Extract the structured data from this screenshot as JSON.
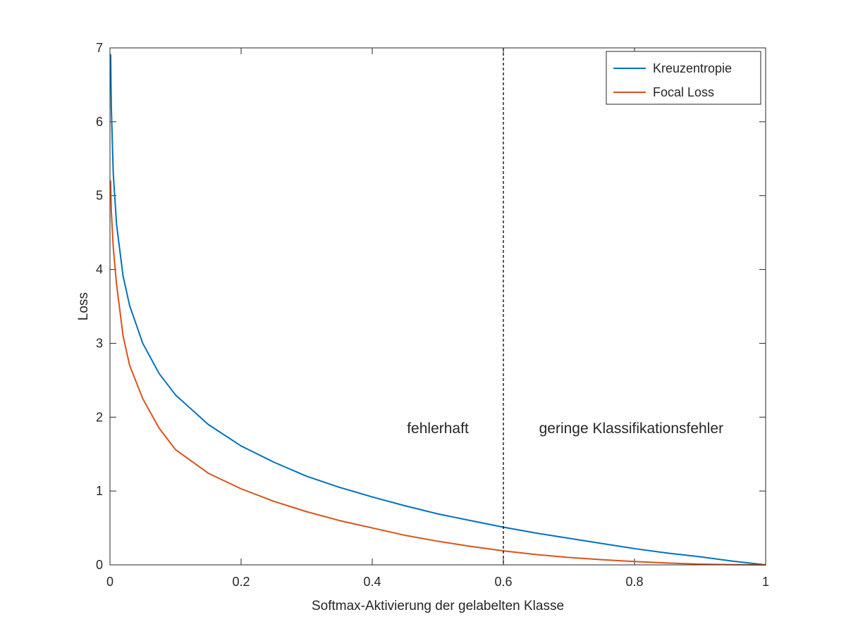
{
  "chart_data": {
    "type": "line",
    "xlabel": "Softmax-Aktivierung der gelabelten Klasse",
    "ylabel": "Loss",
    "xlim": [
      0,
      1
    ],
    "ylim": [
      0,
      7
    ],
    "xticks": [
      0,
      0.2,
      0.4,
      0.6,
      0.8,
      1
    ],
    "xtick_labels": [
      "0",
      "0.2",
      "0.4",
      "0.6",
      "0.8",
      "1"
    ],
    "yticks": [
      0,
      1,
      2,
      3,
      4,
      5,
      6,
      7
    ],
    "ytick_labels": [
      "0",
      "1",
      "2",
      "3",
      "4",
      "5",
      "6",
      "7"
    ],
    "grid": false,
    "legend_position": "top-right",
    "series": [
      {
        "name": "Kreuzentropie",
        "color": "#0072BD",
        "x": [
          0.001,
          0.002,
          0.005,
          0.01,
          0.02,
          0.03,
          0.05,
          0.075,
          0.1,
          0.15,
          0.2,
          0.25,
          0.3,
          0.35,
          0.4,
          0.45,
          0.5,
          0.55,
          0.6,
          0.65,
          0.7,
          0.75,
          0.8,
          0.85,
          0.9,
          0.95,
          1.0
        ],
        "y": [
          6.91,
          6.21,
          5.3,
          4.61,
          3.91,
          3.51,
          3.0,
          2.59,
          2.3,
          1.9,
          1.61,
          1.39,
          1.2,
          1.05,
          0.92,
          0.8,
          0.69,
          0.6,
          0.51,
          0.43,
          0.36,
          0.29,
          0.22,
          0.16,
          0.11,
          0.05,
          0.0
        ]
      },
      {
        "name": "Focal Loss",
        "color": "#D95319",
        "x": [
          0.001,
          0.002,
          0.005,
          0.01,
          0.02,
          0.03,
          0.05,
          0.075,
          0.1,
          0.15,
          0.2,
          0.25,
          0.3,
          0.35,
          0.4,
          0.45,
          0.5,
          0.55,
          0.6,
          0.65,
          0.7,
          0.75,
          0.8,
          0.85,
          0.9,
          0.95,
          1.0
        ],
        "y": [
          5.2,
          4.8,
          4.3,
          3.8,
          3.1,
          2.7,
          2.25,
          1.85,
          1.56,
          1.24,
          1.03,
          0.86,
          0.72,
          0.6,
          0.5,
          0.4,
          0.32,
          0.25,
          0.19,
          0.14,
          0.1,
          0.07,
          0.045,
          0.025,
          0.01,
          0.003,
          0.0
        ]
      }
    ],
    "annotations": [
      {
        "text": "fehlerhaft",
        "x": 0.5,
        "y": 1.85
      },
      {
        "text": "geringe Klassifikationsfehler",
        "x": 0.795,
        "y": 1.85
      }
    ],
    "reference_line": {
      "x": 0.6,
      "style": "dashed",
      "color": "#000000"
    }
  }
}
